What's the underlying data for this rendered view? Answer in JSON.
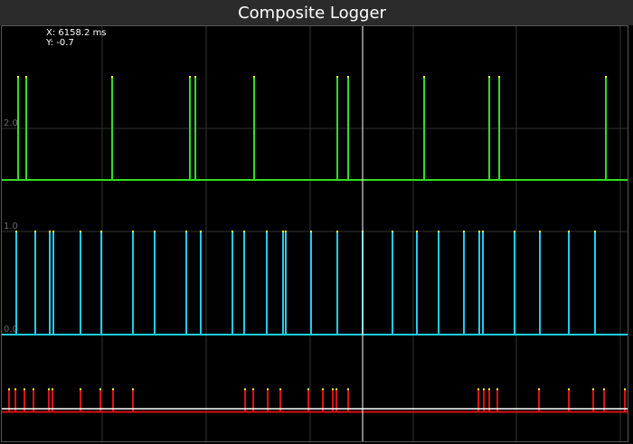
{
  "chart_data": {
    "type": "pulse",
    "title": "Composite Logger",
    "cursor": {
      "x_label": "X: 6158.2 ms",
      "y_label": "Y: -0.7"
    },
    "xlim": [
      0,
      10680
    ],
    "ylim": [
      -1.035,
      3.0
    ],
    "yticks": [
      {
        "value": 0,
        "label": "0.0"
      },
      {
        "value": 1,
        "label": "1.0"
      },
      {
        "value": 2,
        "label": "2.0"
      }
    ],
    "grid": true,
    "series": [
      {
        "color": "#33dd22",
        "low": 1.5,
        "high": 2.5,
        "x": [
          278,
          417,
          1883,
          3210,
          3303,
          4306,
          5726,
          5911,
          7208,
          8319,
          8489,
          10310
        ]
      },
      {
        "color": "#22ccee",
        "low": 0,
        "high": 1.0,
        "x": [
          247,
          571,
          818,
          880,
          1343,
          1698,
          2238,
          2608,
          3149,
          3395,
          3936,
          4136,
          4522,
          4800,
          4846,
          5278,
          5726,
          6158,
          6668,
          7084,
          7455,
          7887,
          8149,
          8211,
          8751,
          9183,
          9677,
          10124
        ]
      },
      {
        "color": "#dd1111",
        "low": -0.75,
        "high": -0.53,
        "x": [
          123,
          232,
          386,
          540,
          803,
          864,
          1343,
          1682,
          1898,
          2238,
          4152,
          4291,
          4538,
          4754,
          5232,
          5479,
          5649,
          5711,
          5911,
          8134,
          8226,
          8319,
          8458,
          9168,
          9677,
          10094,
          10279,
          10634
        ]
      }
    ]
  }
}
